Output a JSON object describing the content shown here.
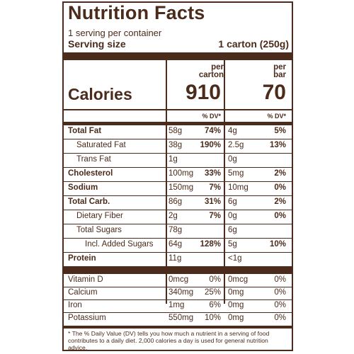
{
  "label": {
    "title": "Nutrition Facts",
    "servings_per_container": "1 serving per container",
    "serving_size_label": "Serving size",
    "serving_size_value": "1 carton (250g)",
    "columns": [
      {
        "header_line1": "per",
        "header_line2": "carton",
        "calories": "910",
        "dv_label": "% DV*"
      },
      {
        "header_line1": "per",
        "header_line2": "bar",
        "calories": "70",
        "dv_label": "% DV*"
      }
    ],
    "calories_label": "Calories",
    "nutrients": [
      {
        "name": "Total Fat",
        "carton_amount": "58g",
        "carton_dv": "74%",
        "bar_amount": "4g",
        "bar_dv": "5%"
      },
      {
        "name": "Saturated Fat",
        "carton_amount": "38g",
        "carton_dv": "190%",
        "bar_amount": "2.5g",
        "bar_dv": "13%"
      },
      {
        "name": "Trans Fat",
        "carton_amount": "1g",
        "carton_dv": "",
        "bar_amount": "0g",
        "bar_dv": ""
      },
      {
        "name": "Cholesterol",
        "carton_amount": "100mg",
        "carton_dv": "33%",
        "bar_amount": "5mg",
        "bar_dv": "2%"
      },
      {
        "name": "Sodium",
        "carton_amount": "150mg",
        "carton_dv": "7%",
        "bar_amount": "10mg",
        "bar_dv": "0%"
      },
      {
        "name": "Total Carb.",
        "carton_amount": "86g",
        "carton_dv": "31%",
        "bar_amount": "6g",
        "bar_dv": "2%"
      },
      {
        "name": "Dietary Fiber",
        "carton_amount": "2g",
        "carton_dv": "7%",
        "bar_amount": "0g",
        "bar_dv": "0%"
      },
      {
        "name": "Total Sugars",
        "carton_amount": "78g",
        "carton_dv": "",
        "bar_amount": "6g",
        "bar_dv": ""
      },
      {
        "name": "Incl. Added Sugars",
        "carton_amount": "64g",
        "carton_dv": "128%",
        "bar_amount": "5g",
        "bar_dv": "10%"
      },
      {
        "name": "Protein",
        "carton_amount": "11g",
        "carton_dv": "",
        "bar_amount": "<1g",
        "bar_dv": ""
      }
    ],
    "vitamins": [
      {
        "name": "Vitamin D",
        "carton_amount": "0mcg",
        "carton_dv": "0%",
        "bar_amount": "0mcg",
        "bar_dv": "0%"
      },
      {
        "name": "Calcium",
        "carton_amount": "340mg",
        "carton_dv": "25%",
        "bar_amount": "0mg",
        "bar_dv": "0%"
      },
      {
        "name": "Iron",
        "carton_amount": "1mg",
        "carton_dv": "6%",
        "bar_amount": "0mg",
        "bar_dv": "0%"
      },
      {
        "name": "Potassium",
        "carton_amount": "550mg",
        "carton_dv": "10%",
        "bar_amount": "0mg",
        "bar_dv": "0%"
      }
    ],
    "footnote": "* The % Daily Value (DV) tells you how much a nutrient in a serving of food contributes to a daily diet. 2,000 calories a day is used for general nutrition advice."
  }
}
